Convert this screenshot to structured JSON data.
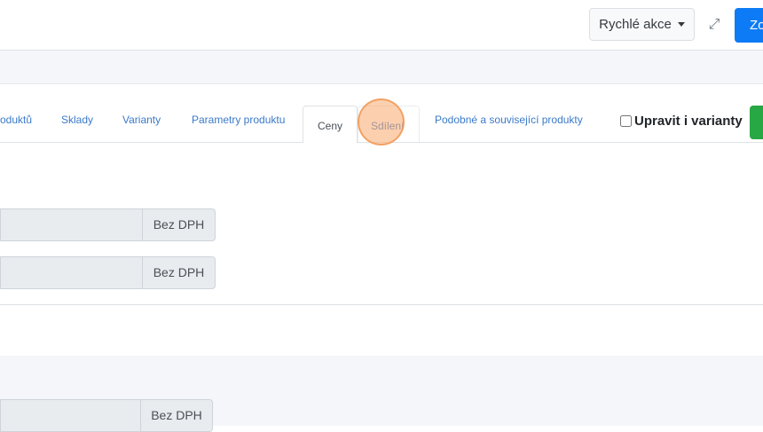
{
  "header": {
    "quick_actions_label": "Rychlé akce",
    "primary_button_label": "Zo",
    "expand_icon": "expand-arrows-icon"
  },
  "tabs": [
    {
      "label": "oduktů"
    },
    {
      "label": "Sklady"
    },
    {
      "label": "Varianty"
    },
    {
      "label": "Parametry produktu"
    },
    {
      "label": "Ceny",
      "active": true
    },
    {
      "label": "Sdílení"
    },
    {
      "label": "Podobné a související produkty"
    }
  ],
  "edit_variants": {
    "label": "Upravit i varianty",
    "checked": false
  },
  "price_fields": [
    {
      "addon": "Bez DPH"
    },
    {
      "addon": "Bez DPH"
    },
    {
      "addon": "Bez DPH"
    }
  ],
  "colors": {
    "primary": "#0d7bf5",
    "success": "#28a745",
    "link": "#3b7ac9"
  }
}
